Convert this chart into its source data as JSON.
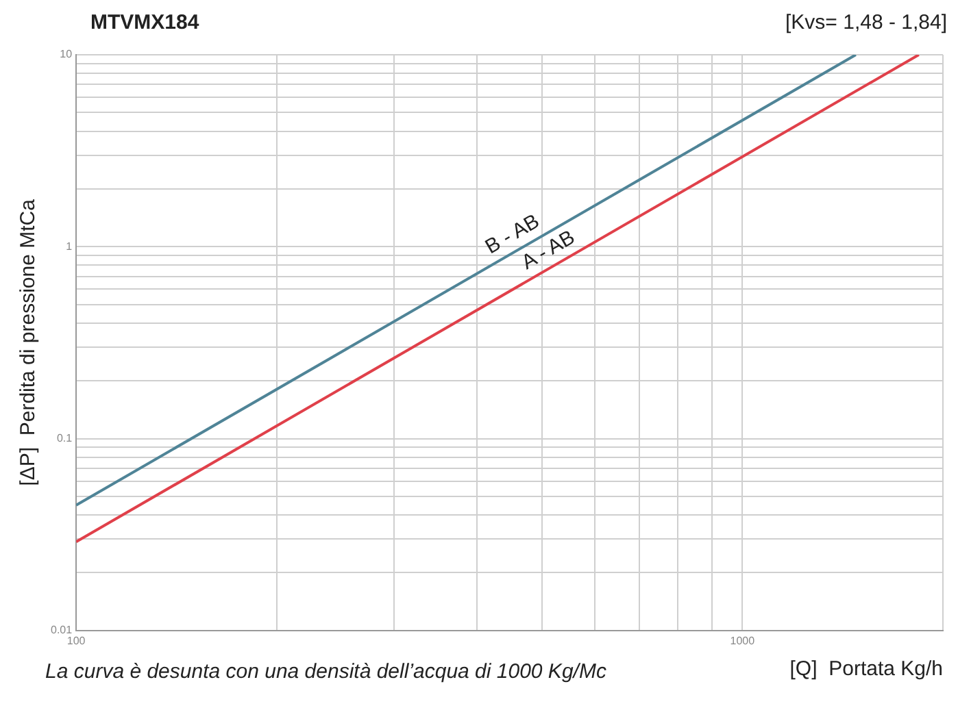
{
  "chart_data": {
    "type": "line",
    "title": "MTVMX184",
    "subtitle": "[Kvs= 1,48 - 1,84]",
    "xlabel": "[Q]  Portata Kg/h",
    "ylabel": "[ΔP]  Perdita di pressione MtCa",
    "annotations": [
      "La curva è desunta con una densità dell’acqua di 1000 Kg/Mc"
    ],
    "series": [
      {
        "name": "B - AB",
        "color": "#4f8497",
        "x": [
          100,
          1480
        ],
        "values": [
          0.045,
          10
        ]
      },
      {
        "name": "A - AB",
        "color": "#e0404a",
        "x": [
          100,
          1840
        ],
        "values": [
          0.029,
          10
        ]
      }
    ],
    "log": "xy",
    "xlim": [
      100,
      2000
    ],
    "ylim": [
      0.01,
      10
    ],
    "xticks": [
      100,
      {
        "value": 200,
        "label": null
      },
      {
        "value": 300,
        "label": null
      },
      {
        "value": 400,
        "label": null
      },
      {
        "value": 500,
        "label": null
      },
      {
        "value": 600,
        "label": null
      },
      {
        "value": 700,
        "label": null
      },
      {
        "value": 800,
        "label": null
      },
      {
        "value": 900,
        "label": null
      },
      1000,
      {
        "value": 2000,
        "label": null
      }
    ],
    "yticks": [
      0.01,
      {
        "value": 0.02,
        "label": null
      },
      {
        "value": 0.03,
        "label": null
      },
      {
        "value": 0.04,
        "label": null
      },
      {
        "value": 0.05,
        "label": null
      },
      {
        "value": 0.06,
        "label": null
      },
      {
        "value": 0.07,
        "label": null
      },
      {
        "value": 0.08,
        "label": null
      },
      {
        "value": 0.09,
        "label": null
      },
      0.1,
      {
        "value": 0.2,
        "label": null
      },
      {
        "value": 0.3,
        "label": null
      },
      {
        "value": 0.4,
        "label": null
      },
      {
        "value": 0.5,
        "label": null
      },
      {
        "value": 0.6,
        "label": null
      },
      {
        "value": 0.7,
        "label": null
      },
      {
        "value": 0.8,
        "label": null
      },
      {
        "value": 0.9,
        "label": null
      },
      1,
      {
        "value": 2,
        "label": null
      },
      {
        "value": 3,
        "label": null
      },
      {
        "value": 4,
        "label": null
      },
      {
        "value": 5,
        "label": null
      },
      {
        "value": 6,
        "label": null
      },
      {
        "value": 7,
        "label": null
      },
      {
        "value": 8,
        "label": null
      },
      {
        "value": 9,
        "label": null
      },
      10
    ],
    "grid": true,
    "legend": false,
    "marker": "none",
    "line_style": "solid"
  }
}
